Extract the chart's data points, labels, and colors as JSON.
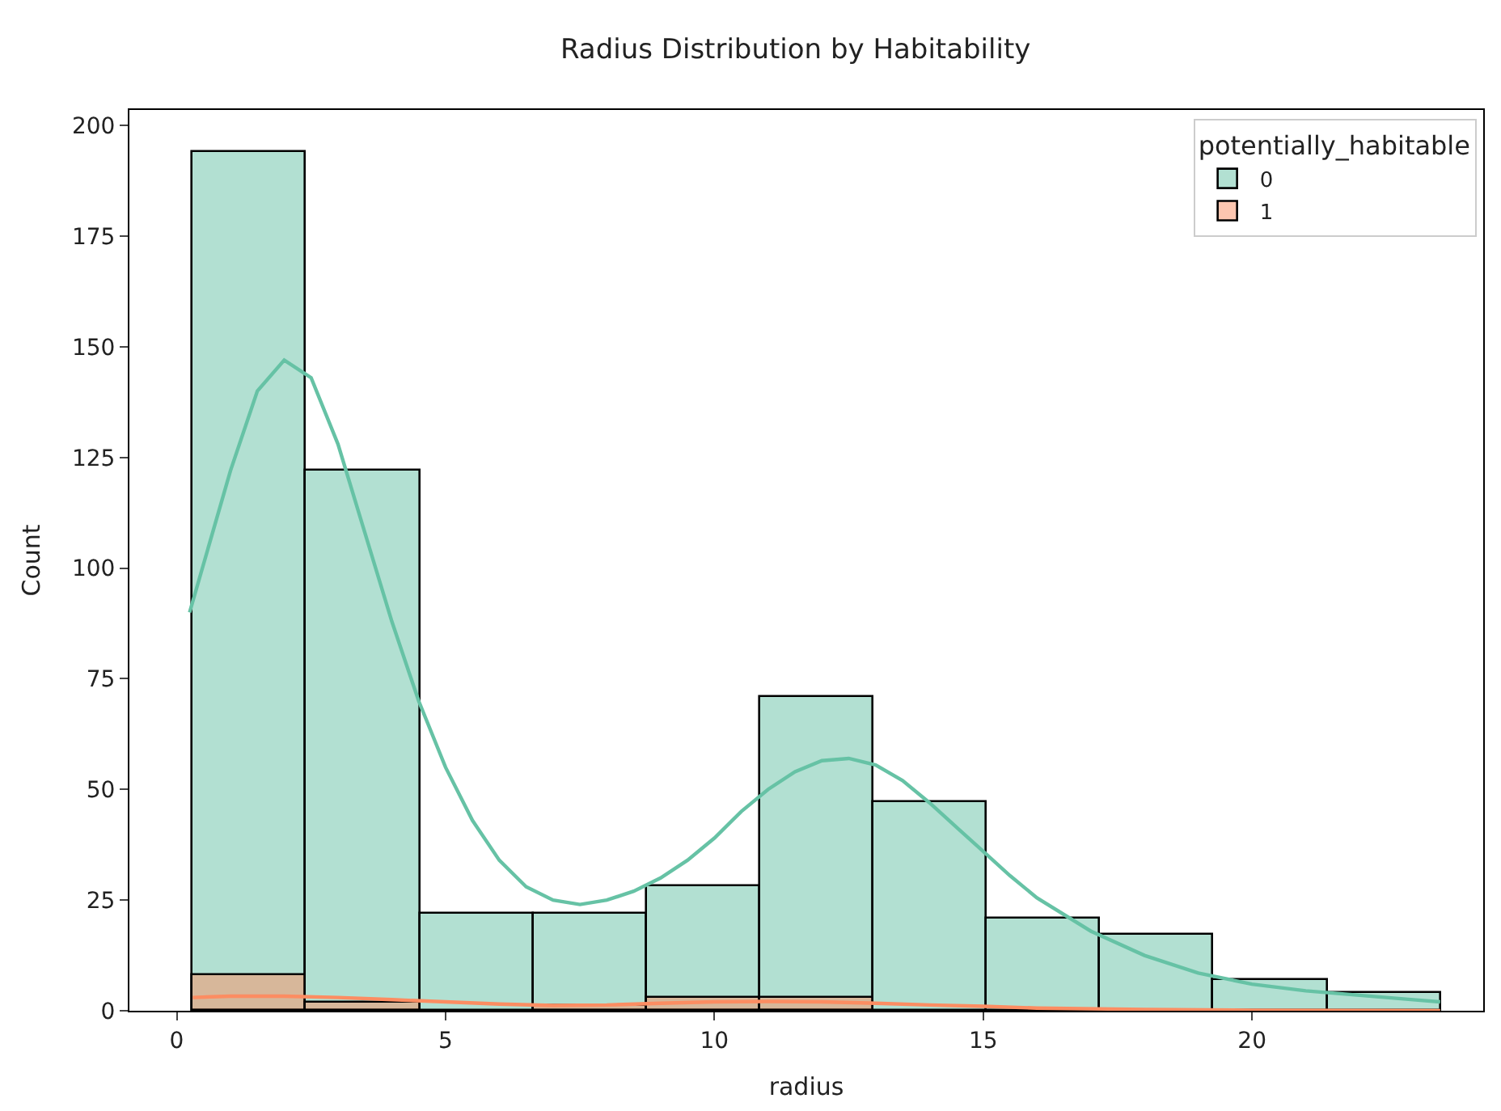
{
  "chart_data": {
    "type": "histogram",
    "title": "Radius Distribution by Habitability",
    "xlabel": "radius",
    "ylabel": "Count",
    "legend_title": "potentially_habitable",
    "bins": [
      0.3,
      2.41,
      4.52,
      6.63,
      8.74,
      10.85,
      12.96,
      15.07,
      17.18,
      19.29,
      21.4,
      23.51
    ],
    "series": [
      {
        "name": "0",
        "color": "#66c2a5",
        "values": [
          194,
          122,
          22,
          22,
          28,
          71,
          47,
          21,
          17,
          7,
          4
        ]
      },
      {
        "name": "1",
        "color": "#fc8d62",
        "values": [
          8,
          2,
          0,
          1,
          3,
          3,
          0,
          0,
          0,
          0,
          0
        ]
      },
      {
        "type": "line",
        "color": "#66c2a5",
        "x": [
          0.24,
          1,
          1.5,
          2,
          2.5,
          3,
          3.5,
          4,
          4.5,
          5,
          5.5,
          6,
          6.5,
          7,
          7.5,
          8,
          8.5,
          9,
          9.5,
          10,
          10.5,
          11,
          11.5,
          12,
          12.5,
          13,
          13.5,
          14,
          14.5,
          15,
          15.5,
          16,
          17,
          18,
          19,
          20,
          21,
          22,
          23,
          23.5
        ],
        "values": [
          90,
          122,
          140,
          147,
          143,
          128,
          108,
          88,
          70,
          55,
          43,
          34,
          28,
          25,
          24,
          25,
          27,
          30,
          34,
          39,
          45,
          50,
          54,
          56.5,
          57,
          55.5,
          52,
          47,
          41.5,
          36,
          30.5,
          25.5,
          18,
          12.5,
          8.5,
          6,
          4.5,
          3.5,
          2.5,
          2
        ]
      },
      {
        "type": "line",
        "color": "#fc8d62",
        "x": [
          0.3,
          1,
          2,
          3,
          4,
          5,
          6,
          7,
          8,
          9,
          10,
          11,
          12,
          13,
          14,
          15,
          16,
          18,
          20,
          23.5
        ],
        "values": [
          3,
          3.3,
          3.3,
          3,
          2.5,
          2,
          1.5,
          1.2,
          1.3,
          1.7,
          2,
          2.1,
          2,
          1.7,
          1.3,
          1,
          0.6,
          0.3,
          0.1,
          0
        ]
      }
    ],
    "xlim": [
      -0.88,
      24.3
    ],
    "ylim": [
      0,
      203.5
    ],
    "xticks": [
      0,
      5,
      10,
      15,
      20
    ],
    "yticks": [
      0,
      25,
      50,
      75,
      100,
      125,
      150,
      175,
      200
    ],
    "legend": "top right"
  }
}
